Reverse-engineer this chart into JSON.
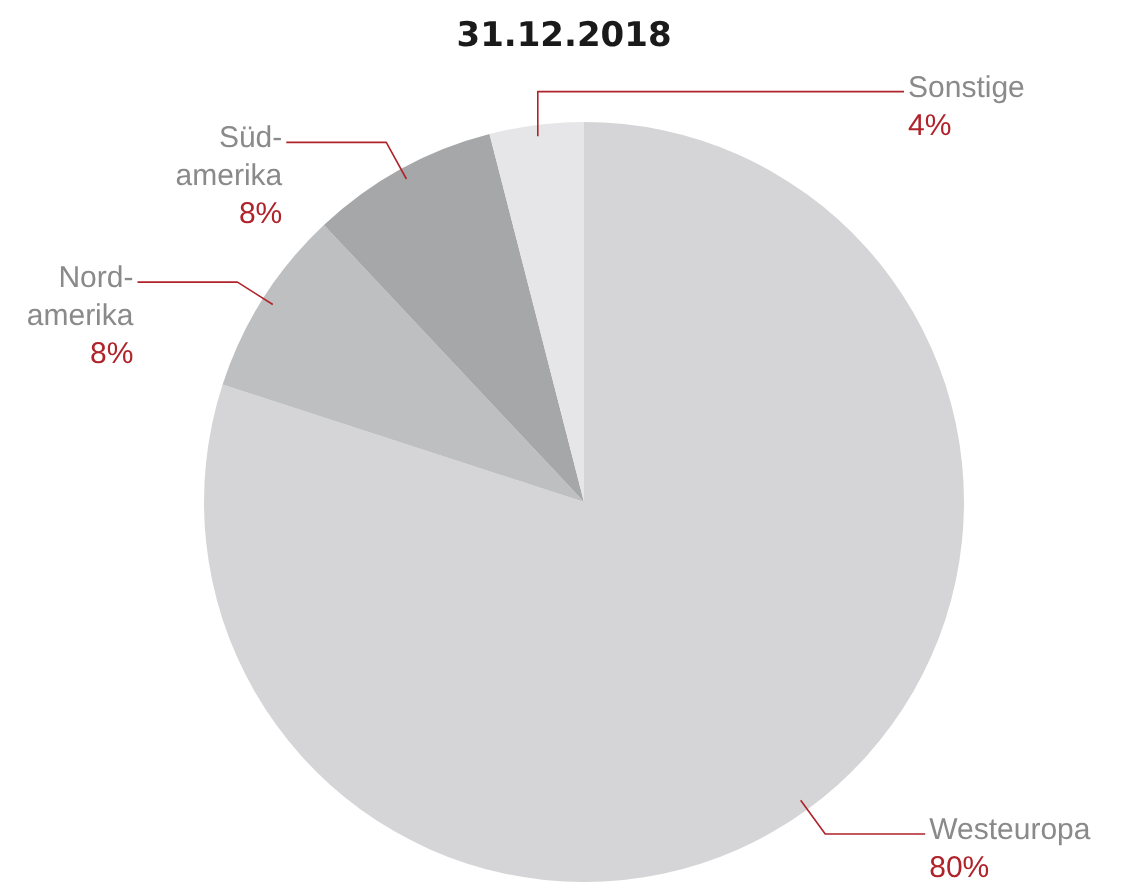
{
  "chart_data": {
    "type": "pie",
    "title": "31.12.2018",
    "categories": [
      "Westeuropa",
      "Nord-\namerika",
      "Süd-\namerika",
      "Sonstige"
    ],
    "values": [
      80,
      8,
      8,
      4
    ],
    "colors": [
      "#d5d5d7",
      "#bebfc1",
      "#a6a7a9",
      "#e6e6e8"
    ],
    "value_labels": [
      "80%",
      "8%",
      "8%",
      "4%"
    ]
  }
}
